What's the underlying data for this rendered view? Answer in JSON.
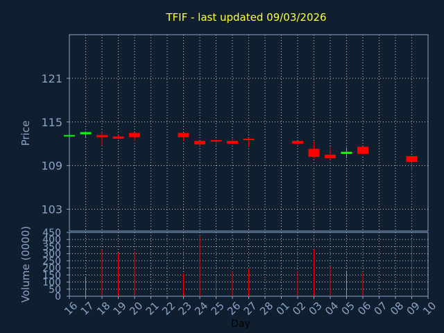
{
  "chart_data": [
    {
      "type": "candlestick",
      "title": "TFIF - last updated 09/03/2026",
      "ylabel": "Price",
      "ylim": [
        100,
        127
      ],
      "yticks": [
        103,
        109,
        115,
        121
      ],
      "x": [
        "16",
        "17",
        "18",
        "19",
        "20",
        "21",
        "22",
        "23",
        "24",
        "25",
        "26",
        "27",
        "28",
        "01",
        "02",
        "03",
        "04",
        "05",
        "06",
        "07",
        "08",
        "09",
        "10"
      ],
      "ohlc": [
        {
          "x": "16",
          "open": 113.2,
          "high": 113.2,
          "low": 113.2,
          "close": 113.2
        },
        {
          "x": "17",
          "open": 113.3,
          "high": 113.7,
          "low": 112.9,
          "close": 113.6
        },
        {
          "x": "18",
          "open": 113.2,
          "high": 113.6,
          "low": 111.7,
          "close": 112.9
        },
        {
          "x": "19",
          "open": 113.0,
          "high": 113.2,
          "low": 112.6,
          "close": 112.7
        },
        {
          "x": "20",
          "open": 113.5,
          "high": 113.5,
          "low": 112.4,
          "close": 112.9
        },
        {
          "x": "23",
          "open": 113.5,
          "high": 113.5,
          "low": 112.4,
          "close": 112.9
        },
        {
          "x": "24",
          "open": 112.4,
          "high": 112.4,
          "low": 111.7,
          "close": 111.9
        },
        {
          "x": "25",
          "open": 112.5,
          "high": 112.6,
          "low": 111.7,
          "close": 112.3
        },
        {
          "x": "26",
          "open": 112.4,
          "high": 112.7,
          "low": 111.9,
          "close": 112.0
        },
        {
          "x": "27",
          "open": 112.7,
          "high": 112.8,
          "low": 111.6,
          "close": 112.5
        },
        {
          "x": "02",
          "open": 112.4,
          "high": 112.4,
          "low": 111.8,
          "close": 112.0
        },
        {
          "x": "03",
          "open": 111.3,
          "high": 112.3,
          "low": 110.0,
          "close": 110.2
        },
        {
          "x": "04",
          "open": 110.5,
          "high": 111.6,
          "low": 109.8,
          "close": 110.0
        },
        {
          "x": "05",
          "open": 110.6,
          "high": 111.5,
          "low": 110.0,
          "close": 110.9
        },
        {
          "x": "06",
          "open": 111.6,
          "high": 111.6,
          "low": 110.5,
          "close": 110.6
        },
        {
          "x": "09",
          "open": 110.3,
          "high": 110.3,
          "low": 108.2,
          "close": 109.5
        }
      ],
      "colors": {
        "up": "#00ff00",
        "down": "#ff0000"
      }
    },
    {
      "type": "bar",
      "ylabel": "Volume (0000)",
      "xlabel": "Day",
      "ylim": [
        0,
        450
      ],
      "yticks": [
        0,
        50,
        100,
        150,
        200,
        250,
        300,
        350,
        400,
        450
      ],
      "categories": [
        "16",
        "17",
        "18",
        "19",
        "20",
        "21",
        "22",
        "23",
        "24",
        "25",
        "26",
        "27",
        "28",
        "01",
        "02",
        "03",
        "04",
        "05",
        "06",
        "07",
        "08",
        "09",
        "10"
      ],
      "values": [
        0,
        140,
        330,
        305,
        315,
        0,
        0,
        160,
        420,
        155,
        175,
        195,
        0,
        0,
        180,
        330,
        210,
        180,
        165,
        0,
        0,
        390,
        0
      ],
      "colors": [
        "#00ff00",
        "#00ff00",
        "#ff0000",
        "#ff0000",
        "#ff0000",
        "#ff0000",
        "#ff0000",
        "#ff0000",
        "#ff0000",
        "#ff0000",
        "#ff0000",
        "#ff0000",
        "#ff0000",
        "#ff0000",
        "#ff0000",
        "#ff0000",
        "#ff0000",
        "#00ff00",
        "#ff0000",
        "#ff0000",
        "#ff0000",
        "#ff0000",
        "#ff0000"
      ]
    }
  ],
  "theme": {
    "background": "#0f1f2f",
    "grid": "#c8c8c8",
    "axis": "#8aa4c8",
    "title": "#ffff33"
  }
}
